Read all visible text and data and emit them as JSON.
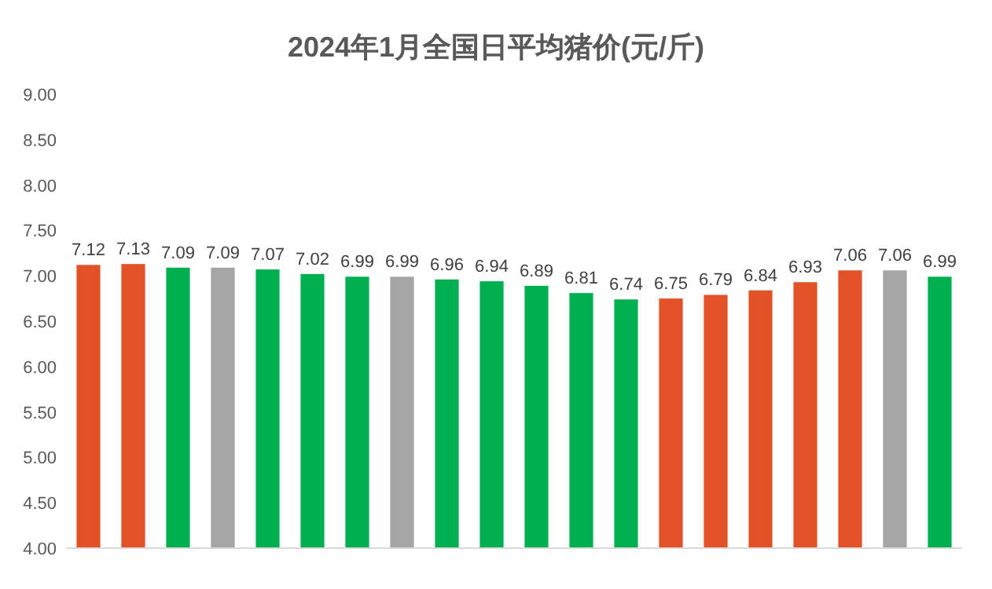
{
  "chart_data": {
    "type": "bar",
    "title": "2024年1月全国日平均猪价(元/斤)",
    "categories": [
      null,
      null,
      null,
      null,
      null,
      null,
      null,
      null,
      null,
      null,
      null,
      null,
      null,
      null,
      null,
      null,
      null,
      null,
      null,
      null
    ],
    "values": [
      7.12,
      7.13,
      7.09,
      7.09,
      7.07,
      7.02,
      6.99,
      6.99,
      6.96,
      6.94,
      6.89,
      6.81,
      6.74,
      6.75,
      6.79,
      6.84,
      6.93,
      7.06,
      7.06,
      6.99
    ],
    "colors": [
      "#e15327",
      "#e15327",
      "#00b050",
      "#a5a5a5",
      "#00b050",
      "#00b050",
      "#00b050",
      "#a5a5a5",
      "#00b050",
      "#00b050",
      "#00b050",
      "#00b050",
      "#00b050",
      "#e15327",
      "#e15327",
      "#e15327",
      "#e15327",
      "#e15327",
      "#a5a5a5",
      "#00b050"
    ],
    "ylim": [
      4,
      9
    ],
    "yticks": [
      {
        "value": 4,
        "label": "4.00"
      },
      {
        "value": 4.5,
        "label": "4.50"
      },
      {
        "value": 5,
        "label": "5.00"
      },
      {
        "value": 5.5,
        "label": "5.50"
      },
      {
        "value": 6,
        "label": "6.00"
      },
      {
        "value": 6.5,
        "label": "6.50"
      },
      {
        "value": 7,
        "label": "7.00"
      },
      {
        "value": 7.5,
        "label": "7.50"
      },
      {
        "value": 8,
        "label": "8.00"
      },
      {
        "value": 8.5,
        "label": "8.50"
      },
      {
        "value": 9,
        "label": "9.00"
      }
    ],
    "data_labels": true
  }
}
